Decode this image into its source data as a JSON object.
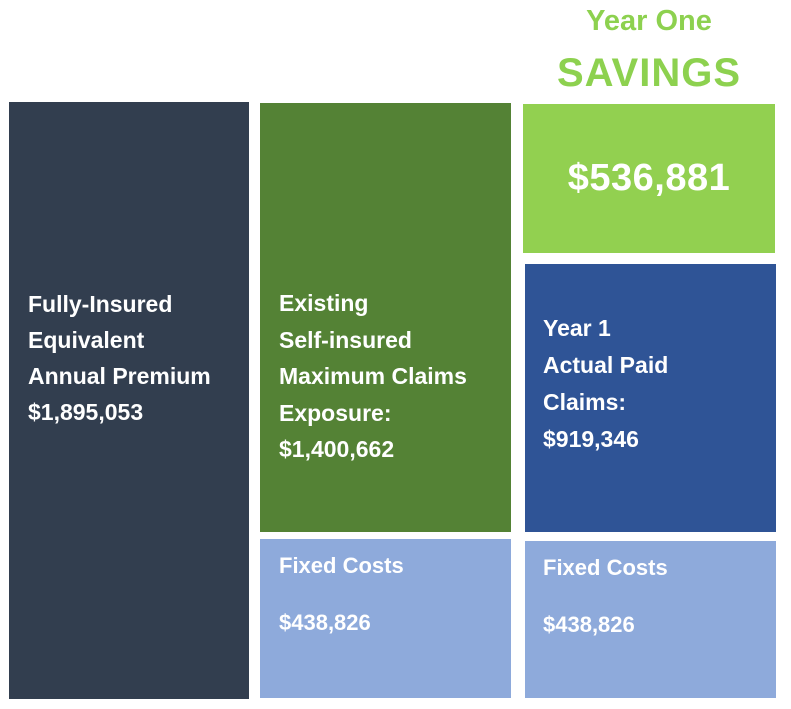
{
  "heading": {
    "line1": "Year One",
    "line2": "SAVINGS"
  },
  "premium_box": {
    "lines": [
      "Fully-Insured",
      "Equivalent",
      "Annual Premium"
    ],
    "amount": "$1,895,053",
    "color": "#323e4f"
  },
  "exposure_box": {
    "lines": [
      "Existing",
      "Self-insured",
      "Maximum Claims",
      "Exposure:"
    ],
    "amount": "$1,400,662",
    "color": "#548235"
  },
  "savings_box": {
    "amount": "$536,881",
    "color": "#92d050"
  },
  "actual_box": {
    "lines": [
      "Year 1",
      "Actual Paid",
      "Claims:"
    ],
    "amount": "$919,346",
    "color": "#2f5496"
  },
  "fixed_left": {
    "label": "Fixed Costs",
    "amount": "$438,826",
    "color": "#8eaadb"
  },
  "fixed_right": {
    "label": "Fixed Costs",
    "amount": "$438,826",
    "color": "#8eaadb"
  }
}
